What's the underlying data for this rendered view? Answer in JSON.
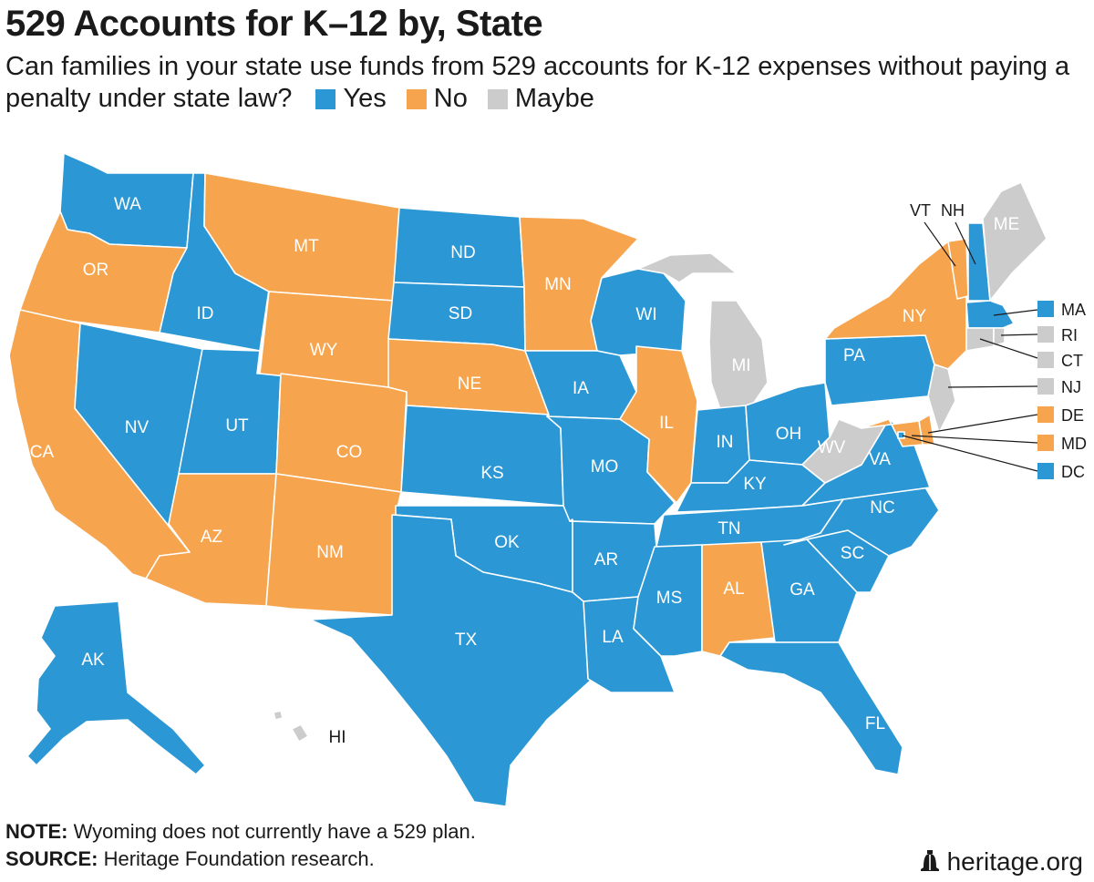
{
  "title": "529 Accounts for K–12 by, State",
  "subtitle": "Can families in your state use funds from 529 accounts for K-12 expenses without paying a penalty under state law?",
  "legend": [
    {
      "label": "Yes",
      "color": "#2b97d4"
    },
    {
      "label": "No",
      "color": "#f6a54e"
    },
    {
      "label": "Maybe",
      "color": "#cccccc"
    }
  ],
  "colors": {
    "yes": "#2b97d4",
    "no": "#f6a54e",
    "maybe": "#cccccc"
  },
  "states": {
    "WA": "Yes",
    "OR": "No",
    "CA": "No",
    "ID": "Yes",
    "NV": "Yes",
    "UT": "Yes",
    "AZ": "No",
    "MT": "No",
    "WY": "No",
    "CO": "No",
    "NM": "No",
    "ND": "Yes",
    "SD": "Yes",
    "NE": "No",
    "KS": "Yes",
    "OK": "Yes",
    "TX": "Yes",
    "MN": "No",
    "IA": "Yes",
    "MO": "Yes",
    "AR": "Yes",
    "LA": "Yes",
    "WI": "Yes",
    "IL": "No",
    "MI": "Maybe",
    "IN": "Yes",
    "OH": "Yes",
    "KY": "Yes",
    "TN": "Yes",
    "MS": "Yes",
    "AL": "No",
    "GA": "Yes",
    "FL": "Yes",
    "SC": "Yes",
    "NC": "Yes",
    "VA": "Yes",
    "WV": "Maybe",
    "PA": "Yes",
    "NY": "No",
    "VT": "No",
    "NH": "Yes",
    "ME": "Maybe",
    "MA": "Yes",
    "RI": "Maybe",
    "CT": "Maybe",
    "NJ": "Maybe",
    "DE": "No",
    "MD": "No",
    "DC": "Yes",
    "AK": "Yes",
    "HI": "Maybe"
  },
  "labels": {
    "WA": "WA",
    "OR": "OR",
    "CA": "CA",
    "ID": "ID",
    "NV": "NV",
    "UT": "UT",
    "AZ": "AZ",
    "MT": "MT",
    "WY": "WY",
    "CO": "CO",
    "NM": "NM",
    "ND": "ND",
    "SD": "SD",
    "NE": "NE",
    "KS": "KS",
    "OK": "OK",
    "TX": "TX",
    "MN": "MN",
    "IA": "IA",
    "MO": "MO",
    "AR": "AR",
    "LA": "LA",
    "WI": "WI",
    "IL": "IL",
    "MI": "MI",
    "IN": "IN",
    "OH": "OH",
    "KY": "KY",
    "TN": "TN",
    "MS": "MS",
    "AL": "AL",
    "GA": "GA",
    "FL": "FL",
    "SC": "SC",
    "NC": "NC",
    "VA": "VA",
    "WV": "WV",
    "PA": "PA",
    "NY": "NY",
    "ME": "ME",
    "AK": "AK",
    "HI": "HI",
    "VT": "VT",
    "NH": "NH"
  },
  "callouts": [
    {
      "code": "MA",
      "label": "MA"
    },
    {
      "code": "RI",
      "label": "RI"
    },
    {
      "code": "CT",
      "label": "CT"
    },
    {
      "code": "NJ",
      "label": "NJ"
    },
    {
      "code": "DE",
      "label": "DE"
    },
    {
      "code": "MD",
      "label": "MD"
    },
    {
      "code": "DC",
      "label": "DC"
    }
  ],
  "note_label": "NOTE:",
  "note_text": "Wyoming does not currently have a 529 plan.",
  "source_label": "SOURCE:",
  "source_text": "Heritage Foundation research.",
  "brand": "heritage.org",
  "brand_icon": "liberty-bell-icon"
}
